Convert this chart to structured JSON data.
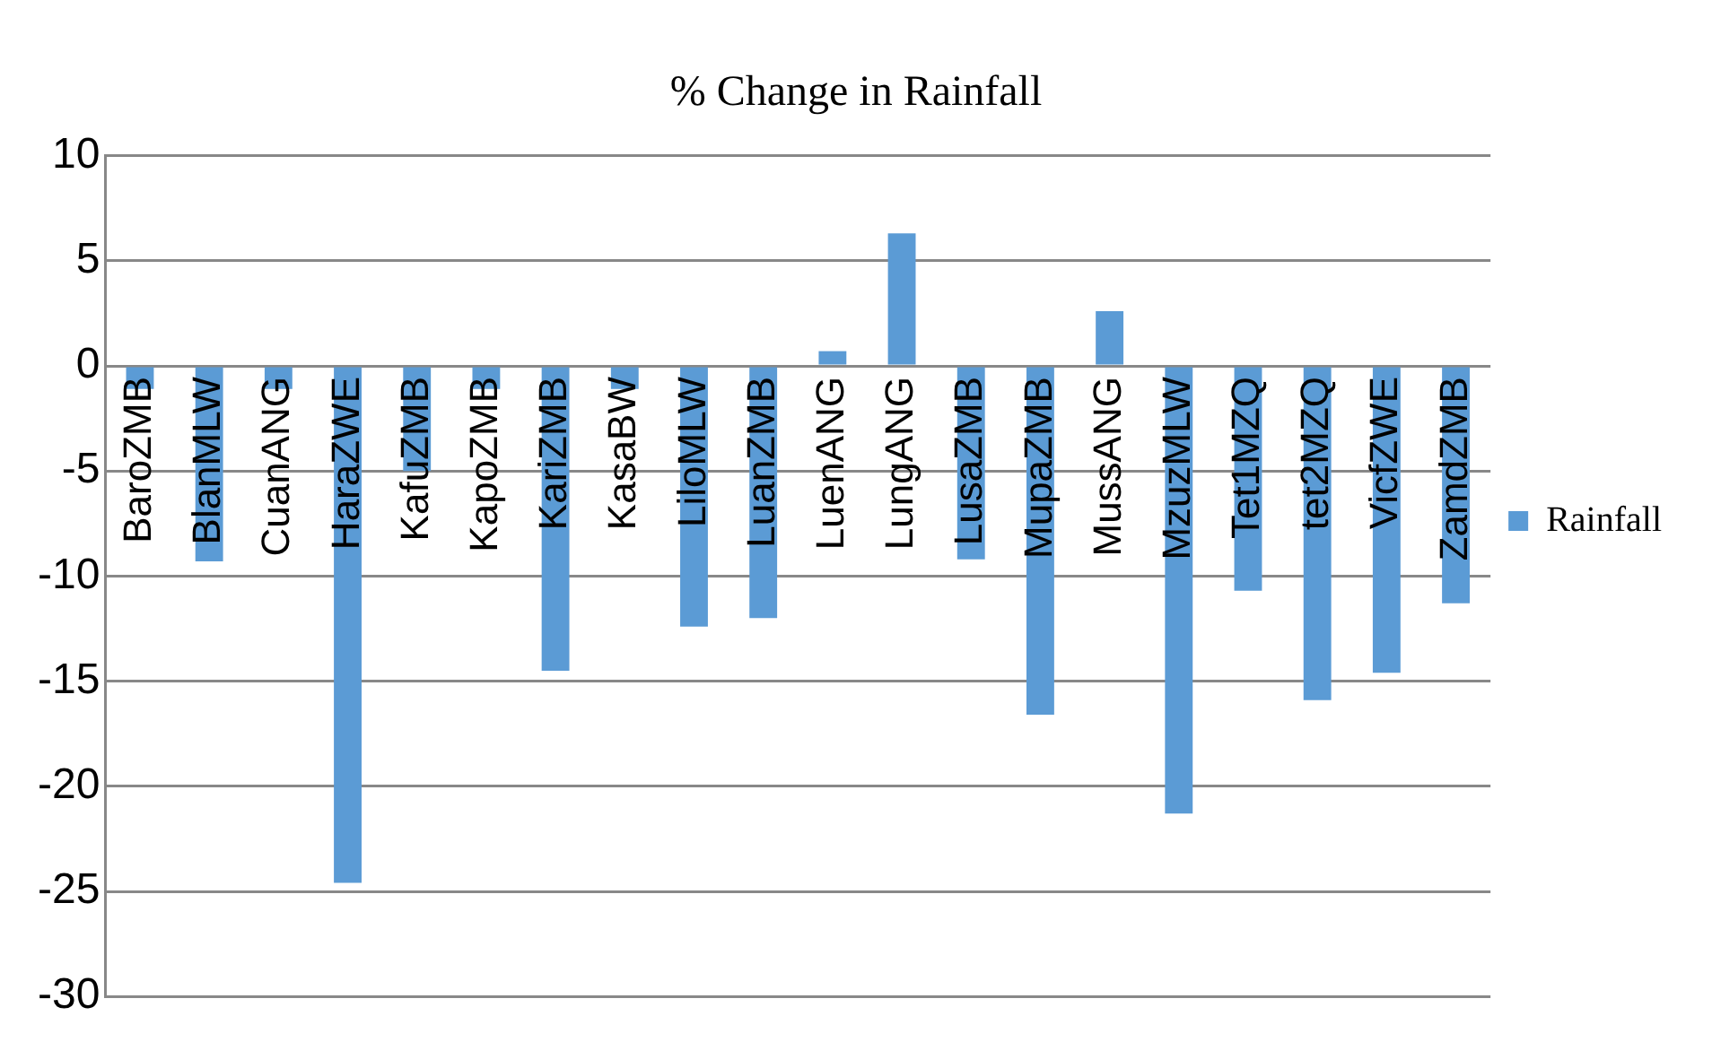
{
  "chart_data": {
    "type": "bar",
    "title": "% Change in Rainfall",
    "categories": [
      "BaroZMB",
      "BlanMLW",
      "CuanANG",
      "HaraZWE",
      "KafuZMB",
      "KapoZMB",
      "KariZMB",
      "KasaBW",
      "LiloMLW",
      "LuanZMB",
      "LuenANG",
      "LungANG",
      "LusaZMB",
      "MupaZMB",
      "MussANG",
      "MzuzMLW",
      "Tet1MZQ",
      "tet2MZQ",
      "VicfZWE",
      "ZamdZMB"
    ],
    "series": [
      {
        "name": "Rainfall",
        "color": "#5b9bd5",
        "values": [
          -1.1,
          -9.3,
          -1.1,
          -24.6,
          -5,
          -1.1,
          -14.5,
          -1.1,
          -12.4,
          -12,
          0.7,
          6.3,
          -9.2,
          -16.6,
          2.6,
          -21.3,
          -10.7,
          -15.9,
          -14.6,
          -11.3
        ]
      }
    ],
    "ylim": [
      -30,
      10
    ],
    "yticks": [
      -30,
      -25,
      -20,
      -15,
      -10,
      -5,
      0,
      5,
      10
    ],
    "grid": "y",
    "legend": "right"
  }
}
